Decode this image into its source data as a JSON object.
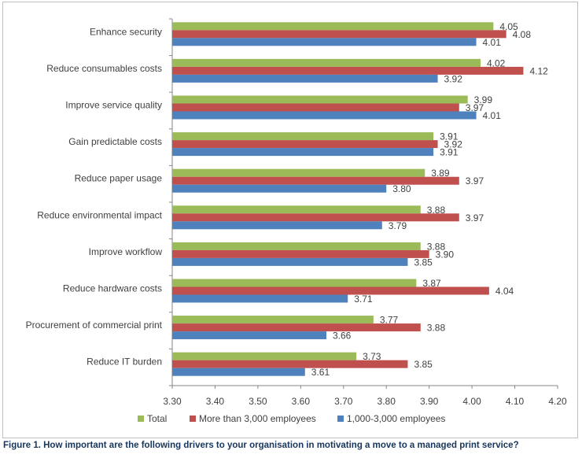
{
  "caption": "Figure 1. How important are the following drivers to your organisation in motivating a move to a managed print service?",
  "chart_data": {
    "type": "bar",
    "orientation": "horizontal",
    "categories": [
      "Enhance security",
      "Reduce consumables costs",
      "Improve service quality",
      "Gain predictable costs",
      "Reduce paper usage",
      "Reduce environmental impact",
      "Improve workflow",
      "Reduce hardware costs",
      "Procurement of commercial print",
      "Reduce IT burden"
    ],
    "series": [
      {
        "name": "Total",
        "color": "#9bbb59",
        "values": [
          4.05,
          4.02,
          3.99,
          3.91,
          3.89,
          3.88,
          3.88,
          3.87,
          3.77,
          3.73
        ]
      },
      {
        "name": "More than 3,000 employees",
        "color": "#c0504d",
        "values": [
          4.08,
          4.12,
          3.97,
          3.92,
          3.97,
          3.97,
          3.9,
          4.04,
          3.88,
          3.85
        ]
      },
      {
        "name": "1,000-3,000 employees",
        "color": "#4f81bd",
        "values": [
          4.01,
          3.92,
          4.01,
          3.91,
          3.8,
          3.79,
          3.85,
          3.71,
          3.66,
          3.61
        ]
      }
    ],
    "value_labels": [
      [
        "4.05",
        "4.02",
        "3.99",
        "3.91",
        "3.89",
        "3.88",
        "3.88",
        "3.87",
        "3.77",
        "3.73"
      ],
      [
        "4.08",
        "4.12",
        "3.97",
        "3.92",
        "3.97",
        "3.97",
        "3.90",
        "4.04",
        "3.88",
        "3.85"
      ],
      [
        "4.01",
        "3.92",
        "4.01",
        "3.91",
        "3.80",
        "3.79",
        "3.85",
        "3.71",
        "3.66",
        "3.61"
      ]
    ],
    "xlim": [
      3.3,
      4.2
    ],
    "ticks": [
      "3.30",
      "3.40",
      "3.50",
      "3.60",
      "3.70",
      "3.80",
      "3.90",
      "4.00",
      "4.10",
      "4.20"
    ],
    "grid": false,
    "legend_position": "bottom"
  }
}
